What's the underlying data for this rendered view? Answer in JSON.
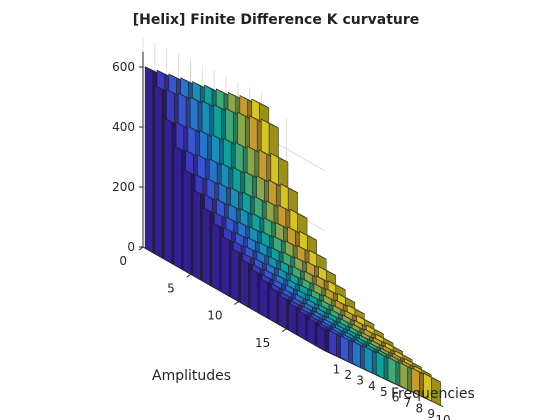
{
  "chart_data": {
    "type": "bar3",
    "title": "[Helix] Finite Difference K curvature",
    "xlabel": "Frequencies",
    "ylabel": "Amplitudes",
    "zlabel": "",
    "x_ticks": [
      "1",
      "2",
      "3",
      "4",
      "5",
      "6",
      "7",
      "8",
      "9",
      "10"
    ],
    "y_ticks": [
      "0",
      "5",
      "10",
      "15"
    ],
    "z_ticks": [
      "0",
      "200",
      "400",
      "600"
    ],
    "zlim": [
      0,
      700
    ],
    "grid": true,
    "colormap": "parula",
    "frequencies": [
      1,
      2,
      3,
      4,
      5,
      6,
      7,
      8,
      9,
      10
    ],
    "amplitudes": [
      1,
      2,
      3,
      4,
      5,
      6,
      7,
      8,
      9,
      10,
      11,
      12,
      13,
      14,
      15,
      16,
      17,
      18,
      19
    ],
    "values": [
      [
        605,
        612,
        618,
        624,
        630,
        637,
        643,
        650,
        658,
        665
      ],
      [
        560,
        566,
        572,
        578,
        584,
        590,
        596,
        602,
        609,
        616
      ],
      [
        470,
        475,
        480,
        485,
        490,
        496,
        501,
        507,
        513,
        520
      ],
      [
        395,
        399,
        403,
        408,
        412,
        417,
        421,
        426,
        431,
        437
      ],
      [
        335,
        338,
        342,
        345,
        349,
        353,
        357,
        361,
        366,
        370
      ],
      [
        285,
        288,
        291,
        294,
        297,
        300,
        304,
        307,
        311,
        315
      ],
      [
        245,
        247,
        250,
        253,
        255,
        258,
        261,
        264,
        267,
        270
      ],
      [
        212,
        214,
        216,
        219,
        221,
        223,
        226,
        228,
        231,
        234
      ],
      [
        185,
        187,
        189,
        191,
        193,
        195,
        197,
        199,
        202,
        204
      ],
      [
        163,
        165,
        166,
        168,
        170,
        172,
        174,
        176,
        178,
        180
      ],
      [
        145,
        146,
        148,
        149,
        151,
        153,
        154,
        156,
        158,
        160
      ],
      [
        130,
        131,
        132,
        134,
        135,
        137,
        138,
        140,
        141,
        143
      ],
      [
        117,
        118,
        119,
        121,
        122,
        123,
        125,
        126,
        127,
        129
      ],
      [
        106,
        107,
        108,
        109,
        111,
        112,
        113,
        114,
        116,
        117
      ],
      [
        97,
        98,
        99,
        100,
        101,
        102,
        103,
        104,
        106,
        107
      ],
      [
        89,
        90,
        91,
        92,
        93,
        94,
        95,
        96,
        97,
        98
      ],
      [
        82,
        83,
        84,
        85,
        86,
        86,
        87,
        88,
        89,
        90
      ],
      [
        76,
        77,
        78,
        78,
        79,
        80,
        81,
        82,
        83,
        84
      ],
      [
        71,
        72,
        72,
        73,
        74,
        75,
        75,
        76,
        77,
        78
      ]
    ],
    "colors": [
      "#3e26a8",
      "#4743e0",
      "#4166f5",
      "#2f88ec",
      "#1ea7d6",
      "#15bcb5",
      "#4dc68c",
      "#a3c35a",
      "#e9b83a",
      "#f9e62e"
    ]
  }
}
